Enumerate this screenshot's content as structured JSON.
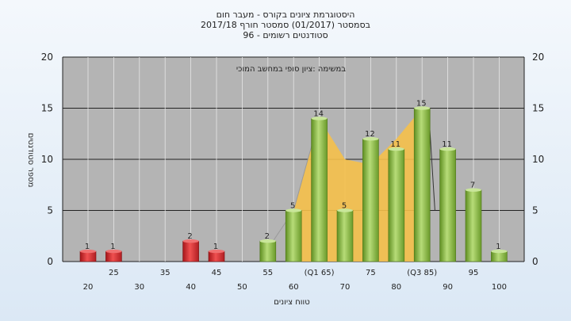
{
  "chart_data": {
    "type": "bar",
    "title_lines": [
      "היסטוגרמת ציונים בקורס - מעבר חום",
      "בסמסטר  (01/2017)  סמסטר חורף 2017/18",
      "סטודנטים רשומים - 96"
    ],
    "xlabel": "טווח ציונים",
    "ylabel": "מספר סטודנטים",
    "ylim": [
      0,
      20
    ],
    "yticks": [
      0,
      5,
      10,
      15,
      20
    ],
    "grid": true,
    "annotation": "במשימה :ציון סופי במחשב המוכי",
    "bins": [
      20,
      25,
      30,
      35,
      40,
      45,
      50,
      55,
      60,
      65,
      70,
      75,
      80,
      85,
      90,
      95,
      100
    ],
    "x_tick_labels_row1": [
      "25",
      "35",
      "45",
      "55",
      "(Q1 65)",
      "75",
      "(Q3 85)",
      "95"
    ],
    "x_tick_labels_row2": [
      "20",
      "30",
      "40",
      "50",
      "60",
      "70",
      "80",
      "90",
      "100"
    ],
    "values": [
      1,
      1,
      0,
      0,
      2,
      1,
      0,
      2,
      5,
      14,
      5,
      12,
      11,
      15,
      11,
      7,
      1
    ],
    "colors": {
      "fail": "#d9282a",
      "pass": "#8fbc3e",
      "band": "#f5c04a",
      "plot_bg": "#b4b4b4",
      "grid": "#222222"
    }
  }
}
